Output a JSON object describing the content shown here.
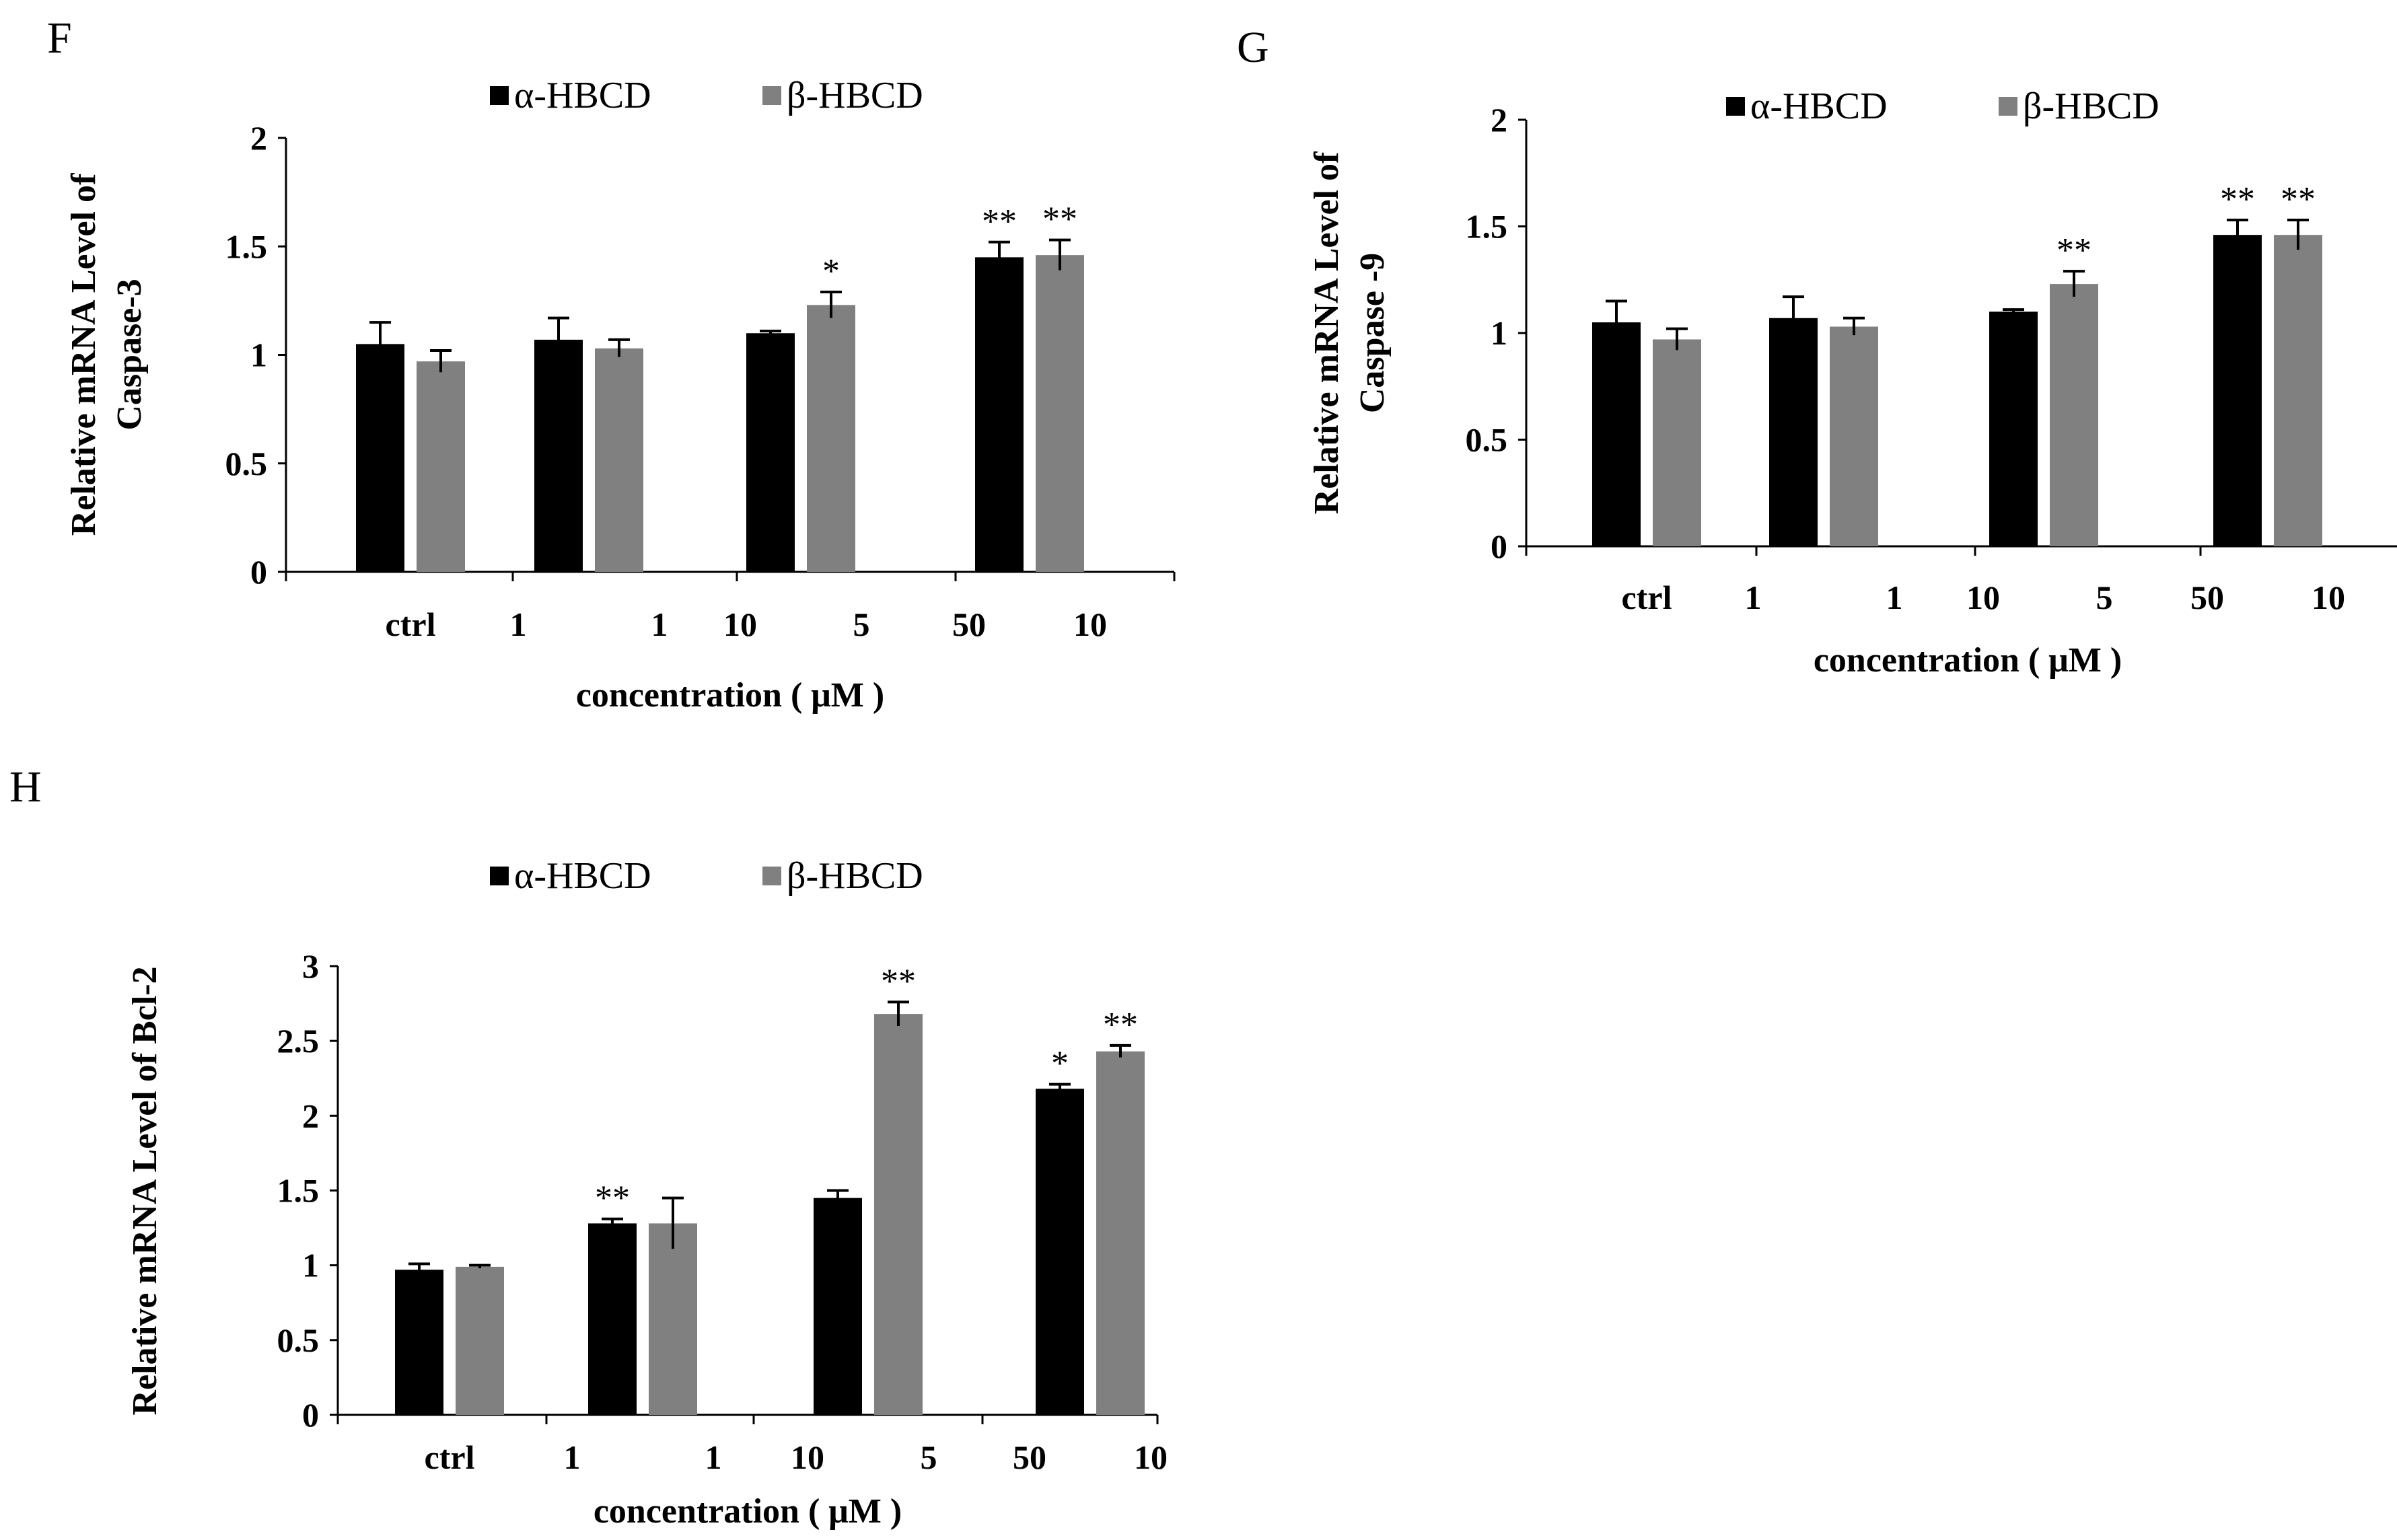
{
  "colors": {
    "alpha": "#000000",
    "beta": "#808080",
    "axis": "#000000"
  },
  "chart_data": [
    {
      "panel": "F",
      "type": "bar",
      "legend": [
        "α-HBCD",
        "β-HBCD"
      ],
      "ylabel_lines": [
        "Relative  mRNA  Level of",
        "Caspase-3"
      ],
      "xlabel": "concentration ( μM )",
      "ylim": [
        0,
        2
      ],
      "yticks": [
        "0",
        "0.5",
        "1",
        "1.5",
        "2"
      ],
      "groups": [
        {
          "labels": [
            "ctrl"
          ],
          "alpha": 1.05,
          "alpha_err": 0.1,
          "beta": 0.97,
          "beta_err": 0.05,
          "alpha_sig": "",
          "beta_sig": ""
        },
        {
          "labels": [
            "1",
            "1"
          ],
          "alpha": 1.07,
          "alpha_err": 0.1,
          "beta": 1.03,
          "beta_err": 0.04,
          "alpha_sig": "",
          "beta_sig": ""
        },
        {
          "labels": [
            "10",
            "5"
          ],
          "alpha": 1.1,
          "alpha_err": 0.01,
          "beta": 1.23,
          "beta_err": 0.06,
          "alpha_sig": "",
          "beta_sig": "*"
        },
        {
          "labels": [
            "50",
            "10"
          ],
          "alpha": 1.45,
          "alpha_err": 0.07,
          "beta": 1.46,
          "beta_err": 0.07,
          "alpha_sig": "**",
          "beta_sig": "**"
        }
      ]
    },
    {
      "panel": "G",
      "type": "bar",
      "legend": [
        "α-HBCD",
        "β-HBCD"
      ],
      "ylabel_lines": [
        "Relative mRNA  Level of",
        "Caspase -9"
      ],
      "xlabel": "concentration ( μM )",
      "ylim": [
        0,
        2
      ],
      "yticks": [
        "0",
        "0.5",
        "1",
        "1.5",
        "2"
      ],
      "groups": [
        {
          "labels": [
            "ctrl"
          ],
          "alpha": 1.05,
          "alpha_err": 0.1,
          "beta": 0.97,
          "beta_err": 0.05,
          "alpha_sig": "",
          "beta_sig": ""
        },
        {
          "labels": [
            "1",
            "1"
          ],
          "alpha": 1.07,
          "alpha_err": 0.1,
          "beta": 1.03,
          "beta_err": 0.04,
          "alpha_sig": "",
          "beta_sig": ""
        },
        {
          "labels": [
            "10",
            "5"
          ],
          "alpha": 1.1,
          "alpha_err": 0.01,
          "beta": 1.23,
          "beta_err": 0.06,
          "alpha_sig": "",
          "beta_sig": "**"
        },
        {
          "labels": [
            "50",
            "10"
          ],
          "alpha": 1.46,
          "alpha_err": 0.07,
          "beta": 1.46,
          "beta_err": 0.07,
          "alpha_sig": "**",
          "beta_sig": "**"
        }
      ]
    },
    {
      "panel": "H",
      "type": "bar",
      "legend": [
        "α-HBCD",
        "β-HBCD"
      ],
      "ylabel_lines": [
        "Relative mRNA  Level of  Bcl-2"
      ],
      "xlabel": "concentration ( μM )",
      "ylim": [
        0,
        3
      ],
      "yticks": [
        "0",
        "0.5",
        "1",
        "1.5",
        "2",
        "2.5",
        "3"
      ],
      "groups": [
        {
          "labels": [
            "ctrl"
          ],
          "alpha": 0.97,
          "alpha_err": 0.04,
          "beta": 0.99,
          "beta_err": 0.01,
          "alpha_sig": "",
          "beta_sig": ""
        },
        {
          "labels": [
            "1",
            "1"
          ],
          "alpha": 1.28,
          "alpha_err": 0.03,
          "beta": 1.28,
          "beta_err": 0.17,
          "alpha_sig": "**",
          "beta_sig": ""
        },
        {
          "labels": [
            "10",
            "5"
          ],
          "alpha": 1.45,
          "alpha_err": 0.05,
          "beta": 2.68,
          "beta_err": 0.08,
          "alpha_sig": "",
          "beta_sig": "**"
        },
        {
          "labels": [
            "50",
            "10"
          ],
          "alpha": 2.18,
          "alpha_err": 0.03,
          "beta": 2.43,
          "beta_err": 0.04,
          "alpha_sig": "*",
          "beta_sig": "**"
        }
      ]
    }
  ]
}
